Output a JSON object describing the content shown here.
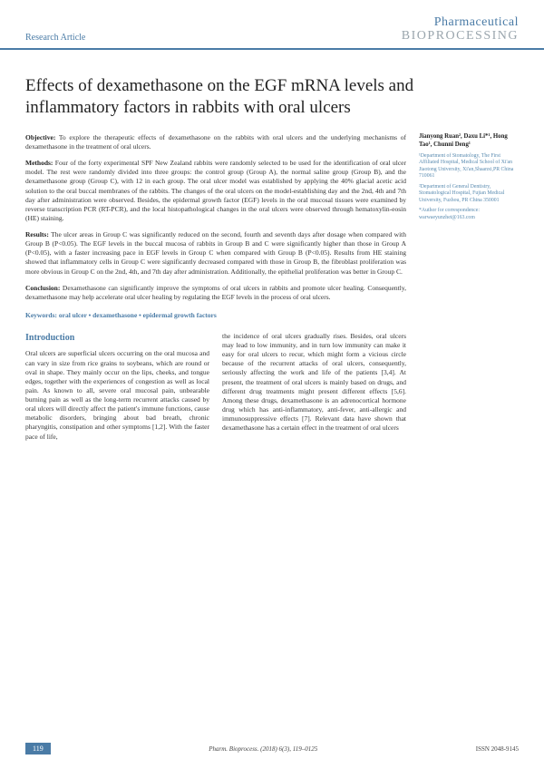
{
  "header": {
    "article_type": "Research Article",
    "journal_line1": "Pharmaceutical",
    "journal_line2": "BIOPROCESSING"
  },
  "title": "Effects of dexamethasone on the EGF mRNA levels and inflammatory factors in rabbits with oral ulcers",
  "authors": "Jianyong Ruan², Daxu Li*¹, Hong Tao¹, Chunni Deng¹",
  "affiliations": [
    "¹Department of Stomatology, The First Affiliated Hospital, Medical School of Xi'an Jiaotong University, Xi'an,Shaanxi,PR China 710061",
    "²Department of General Dentistry, Stomatological Hospital, Fujian Medical University, Fuzhou, PR China 350001"
  ],
  "correspondence": "*Author for correspondence: warwaeyunzhet@163.com",
  "abstract": {
    "objective_label": "Objective:",
    "objective": " To explore the therapeutic effects of dexamethasone on the rabbits with oral ulcers and the underlying mechanisms of dexamethasone in the treatment of oral ulcers.",
    "methods_label": "Methods:",
    "methods": " Four of the forty experimental SPF New Zealand rabbits were randomly selected to be used for the identification of oral ulcer model. The rest were randomly divided into three groups: the control group (Group A), the normal saline group (Group B), and the dexamethasone group (Group C), with 12 in each group. The oral ulcer model was established by applying the 40% glacial acetic acid solution to the oral buccal membranes of the rabbits. The changes of the oral ulcers on the model-establishing day and the 2nd, 4th and 7th day after administration were observed. Besides, the epidermal growth factor (EGF) levels in the oral mucosal tissues were examined by reverse transcription PCR (RT-PCR), and the local histopathological changes in the oral ulcers were observed through hematoxylin-eosin (HE) staining.",
    "results_label": "Results:",
    "results": " The ulcer areas in Group C was significantly reduced on the second, fourth and seventh days after dosage when compared with Group B (P<0.05). The EGF levels in the buccal mucosa of rabbits in Group B and C were significantly higher than those in Group A (P<0.05), with a faster increasing pace in EGF levels in Group C when compared with Group B (P<0.05). Results from HE staining showed that inflammatory cells in Group C were significantly decreased compared with those in Group B, the fibroblast proliferation was more obvious in Group C on the 2nd, 4th, and 7th day after administration. Additionally, the epithelial proliferation was better in Group C.",
    "conclusion_label": "Conclusion:",
    "conclusion": " Dexamethasone can significantly improve the symptoms of oral ulcers in rabbits and promote ulcer healing. Consequently, dexamethasone may help accelerate oral ulcer healing by regulating the EGF levels in the process of oral ulcers."
  },
  "keywords": "Keywords: oral ulcer • dexamethasone • epidermal growth factors",
  "introduction": {
    "heading": "Introduction",
    "col1": "Oral ulcers are superficial ulcers occurring on the oral mucosa and can vary in size from rice grains to soybeans, which are round or oval in shape. They mainly occur on the lips, cheeks, and tongue edges, together with the experiences of congestion as well as local pain. As known to all, severe oral mucosal pain, unbearable burning pain as well as the long-term recurrent attacks caused by oral ulcers will directly affect the patient's immune functions, cause metabolic disorders, bringing about bad breath, chronic pharyngitis, constipation and other symptoms [1,2]. With the faster pace of life,",
    "col2": "the incidence of oral ulcers gradually rises. Besides, oral ulcers may lead to low immunity, and in turn low immunity can make it easy for oral ulcers to recur, which might form a vicious circle because of the recurrent attacks of oral ulcers, consequently, seriously affecting the work and life of the patients [3,4]. At present, the treatment of oral ulcers is mainly based on drugs, and different drug treatments might present different effects [5,6]. Among these drugs, dexamethasone is an adrenocortical hormone drug which has anti-inflammatory, anti-fever, anti-allergic and immunosuppressive effects [7]. Relevant data have shown that dexamethasone has a certain effect in the treatment of oral ulcers"
  },
  "footer": {
    "page": "119",
    "citation": "Pharm. Bioprocess. (2018) 6(3), 119–0125",
    "issn": "ISSN 2048-9145"
  },
  "colors": {
    "accent": "#4a7ba6",
    "gray": "#9aa5ad"
  }
}
